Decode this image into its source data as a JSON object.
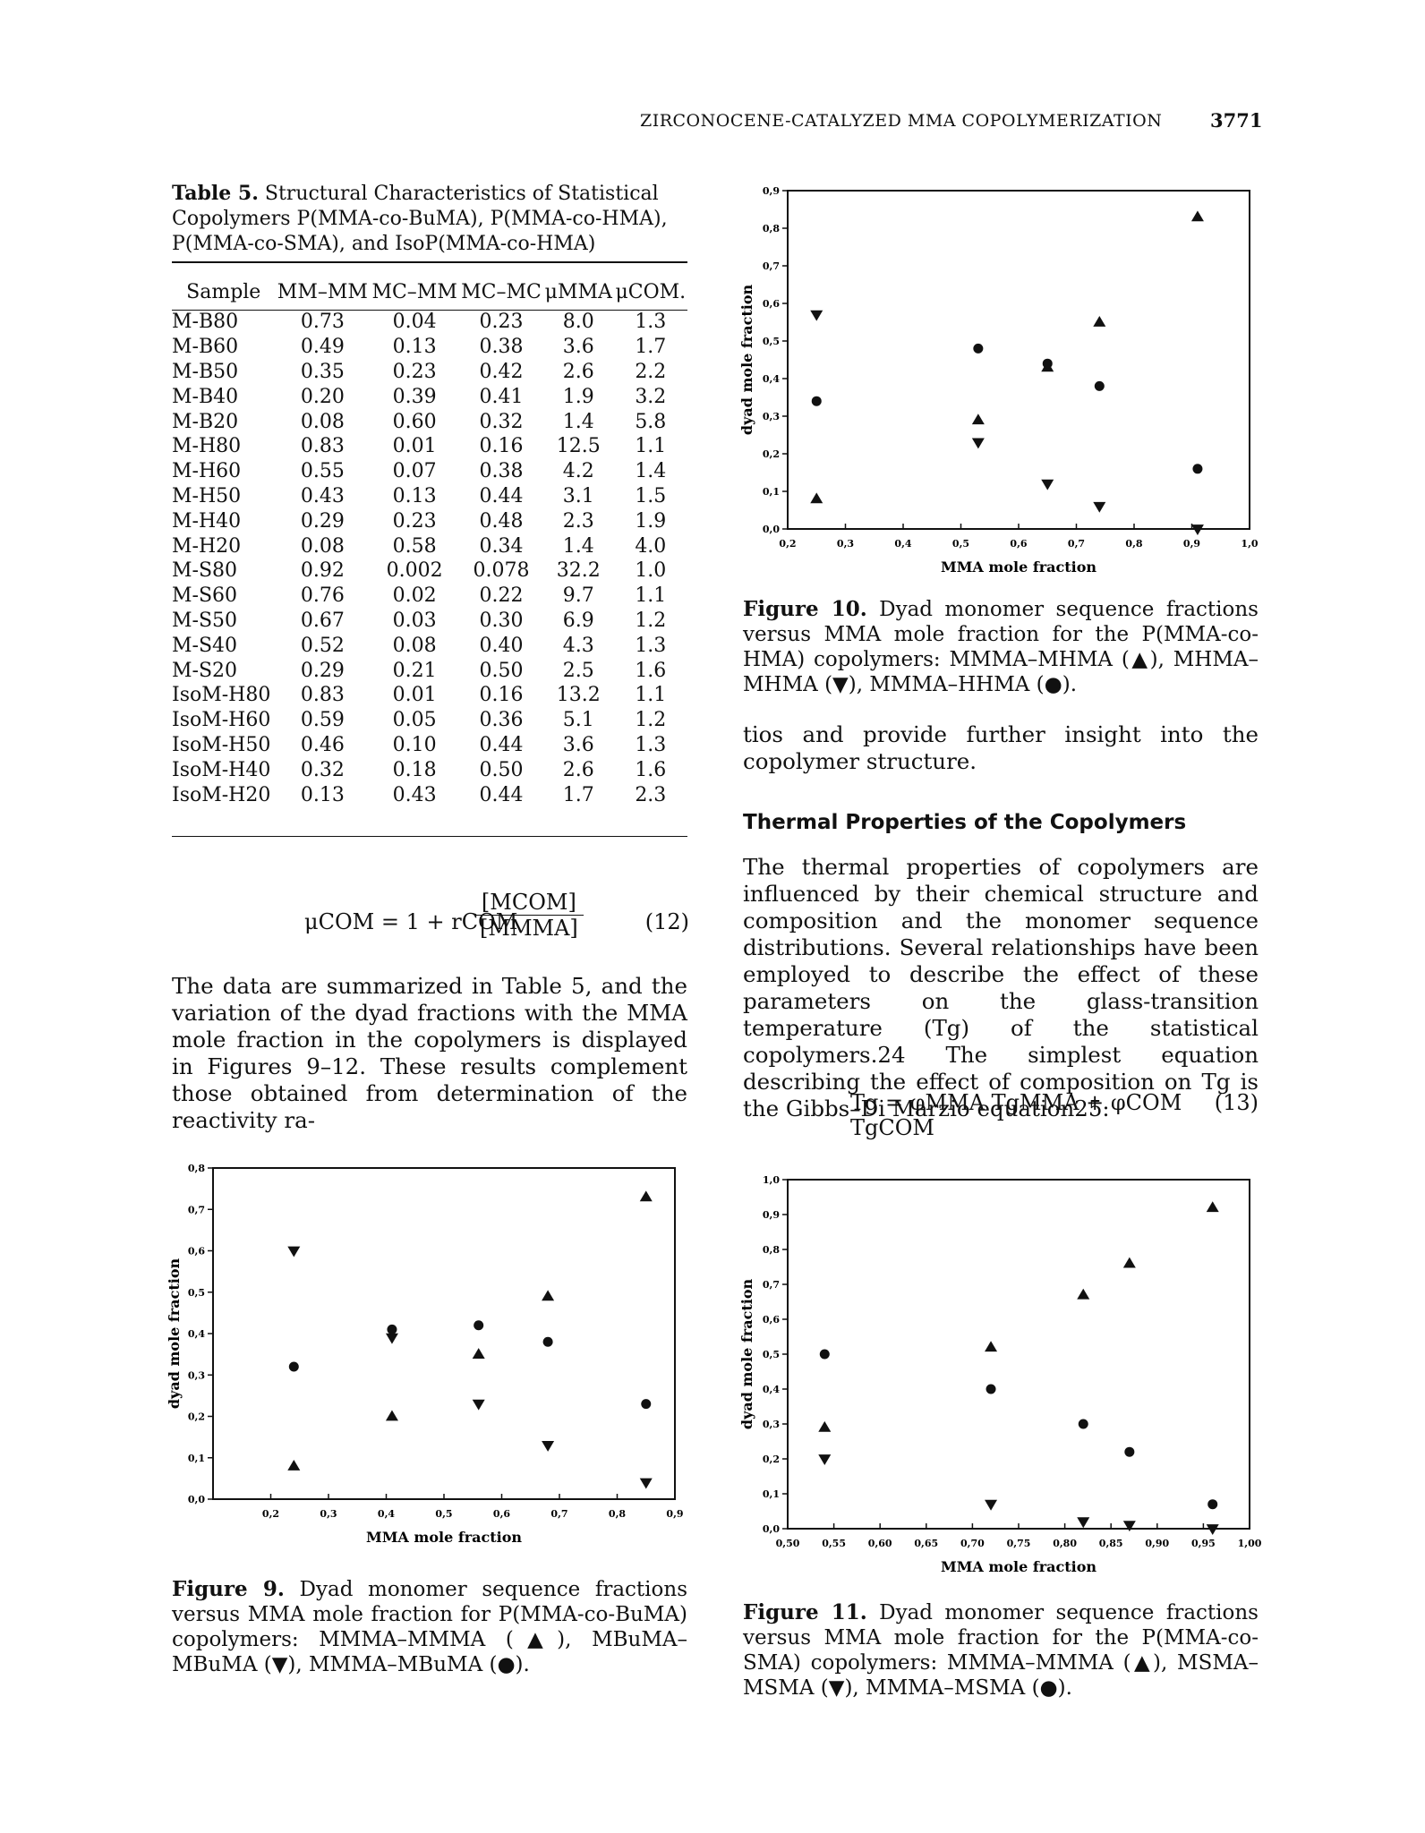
{
  "header": {
    "title": "ZIRCONOCENE-CATALYZED MMA COPOLYMERIZATION",
    "page": "3771"
  },
  "table5": {
    "label": "Table 5.",
    "caption": "Structural Characteristics of Statistical Copolymers P(MMA-co-BuMA), P(MMA-co-HMA), P(MMA-co-SMA), and IsoP(MMA-co-HMA)",
    "columns": [
      "Sample",
      "MM–MM",
      "MC–MM",
      "MC–MC",
      "μMMA",
      "μCOM."
    ],
    "rows": [
      [
        "M-B80",
        "0.73",
        "0.04",
        "0.23",
        "8.0",
        "1.3"
      ],
      [
        "M-B60",
        "0.49",
        "0.13",
        "0.38",
        "3.6",
        "1.7"
      ],
      [
        "M-B50",
        "0.35",
        "0.23",
        "0.42",
        "2.6",
        "2.2"
      ],
      [
        "M-B40",
        "0.20",
        "0.39",
        "0.41",
        "1.9",
        "3.2"
      ],
      [
        "M-B20",
        "0.08",
        "0.60",
        "0.32",
        "1.4",
        "5.8"
      ],
      [
        "M-H80",
        "0.83",
        "0.01",
        "0.16",
        "12.5",
        "1.1"
      ],
      [
        "M-H60",
        "0.55",
        "0.07",
        "0.38",
        "4.2",
        "1.4"
      ],
      [
        "M-H50",
        "0.43",
        "0.13",
        "0.44",
        "3.1",
        "1.5"
      ],
      [
        "M-H40",
        "0.29",
        "0.23",
        "0.48",
        "2.3",
        "1.9"
      ],
      [
        "M-H20",
        "0.08",
        "0.58",
        "0.34",
        "1.4",
        "4.0"
      ],
      [
        "M-S80",
        "0.92",
        "0.002",
        "0.078",
        "32.2",
        "1.0"
      ],
      [
        "M-S60",
        "0.76",
        "0.02",
        "0.22",
        "9.7",
        "1.1"
      ],
      [
        "M-S50",
        "0.67",
        "0.03",
        "0.30",
        "6.9",
        "1.2"
      ],
      [
        "M-S40",
        "0.52",
        "0.08",
        "0.40",
        "4.3",
        "1.3"
      ],
      [
        "M-S20",
        "0.29",
        "0.21",
        "0.50",
        "2.5",
        "1.6"
      ],
      [
        "IsoM-H80",
        "0.83",
        "0.01",
        "0.16",
        "13.2",
        "1.1"
      ],
      [
        "IsoM-H60",
        "0.59",
        "0.05",
        "0.36",
        "5.1",
        "1.2"
      ],
      [
        "IsoM-H50",
        "0.46",
        "0.10",
        "0.44",
        "3.6",
        "1.3"
      ],
      [
        "IsoM-H40",
        "0.32",
        "0.18",
        "0.50",
        "2.6",
        "1.6"
      ],
      [
        "IsoM-H20",
        "0.13",
        "0.43",
        "0.44",
        "1.7",
        "2.3"
      ]
    ]
  },
  "eq12": {
    "lhs": "μCOM = 1 + rCOM",
    "num": "[MCOM]",
    "den": "[MMMA]",
    "number": "(12)"
  },
  "text": {
    "left_para": "The data are summarized in Table 5, and the variation of the dyad fractions with the MMA mole fraction in the copolymers is displayed in Figures 9–12. These results complement those obtained from determination of the reactivity ra-",
    "right_cont": "tios and provide further insight into the copolymer structure.",
    "section": "Thermal Properties of the Copolymers",
    "right_para": "The thermal properties of copolymers are influenced by their chemical structure and composition and the monomer sequence distributions. Several relationships have been employed to describe the effect of these parameters on the glass-transition temperature (Tg) of the statistical copolymers.24 The simplest equation describing the effect of composition on Tg is the Gibbs–Di Marzio equation25:"
  },
  "eq13": {
    "expr": "Tg = φMMA TgMMA + φCOM TgCOM",
    "number": "(13)"
  },
  "captions": {
    "fig10_label": "Figure 10.",
    "fig10": "Dyad monomer sequence fractions versus MMA mole fraction for the P(MMA-co-HMA) copolymers: MMMA–MHMA (▲), MHMA–MHMA (▼), MMMA–HHMA (●).",
    "fig9_label": "Figure 9.",
    "fig9": "Dyad monomer sequence fractions versus MMA mole fraction for P(MMA-co-BuMA) copolymers: MMMA–MMMA (▲), MBuMA–MBuMA (▼), MMMA–MBuMA (●).",
    "fig11_label": "Figure 11.",
    "fig11": "Dyad monomer sequence fractions versus MMA mole fraction for the P(MMA-co-SMA) copolymers: MMMA–MMMA (▲), MSMA–MSMA (▼), MMMA–MSMA (●)."
  },
  "chart_data": [
    {
      "id": "fig10",
      "type": "scatter",
      "xlabel": "MMA mole fraction",
      "ylabel": "dyad mole fraction",
      "xlim": [
        0.2,
        1.0
      ],
      "ylim": [
        0.0,
        0.9
      ],
      "xticks": [
        "0,2",
        "0,3",
        "0,4",
        "0,5",
        "0,6",
        "0,7",
        "0,8",
        "0,9",
        "1,0"
      ],
      "yticks": [
        "0,0",
        "0,1",
        "0,2",
        "0,3",
        "0,4",
        "0,5",
        "0,6",
        "0,7",
        "0,8",
        "0,9"
      ],
      "series": [
        {
          "marker": "triangle-up",
          "points": [
            [
              0.25,
              0.08
            ],
            [
              0.53,
              0.29
            ],
            [
              0.65,
              0.43
            ],
            [
              0.74,
              0.55
            ],
            [
              0.91,
              0.83
            ]
          ]
        },
        {
          "marker": "triangle-down",
          "points": [
            [
              0.25,
              0.57
            ],
            [
              0.53,
              0.23
            ],
            [
              0.65,
              0.12
            ],
            [
              0.74,
              0.06
            ],
            [
              0.91,
              0.0
            ]
          ]
        },
        {
          "marker": "circle",
          "points": [
            [
              0.25,
              0.34
            ],
            [
              0.53,
              0.48
            ],
            [
              0.65,
              0.44
            ],
            [
              0.74,
              0.38
            ],
            [
              0.91,
              0.16
            ]
          ]
        }
      ]
    },
    {
      "id": "fig9",
      "type": "scatter",
      "xlabel": "MMA mole fraction",
      "ylabel": "dyad mole fraction",
      "xlim": [
        0.1,
        0.9
      ],
      "ylim": [
        0.0,
        0.8
      ],
      "xticks": [
        "0,2",
        "0,3",
        "0,4",
        "0,5",
        "0,6",
        "0,7",
        "0,8",
        "0,9"
      ],
      "yticks": [
        "0,0",
        "0,1",
        "0,2",
        "0,3",
        "0,4",
        "0,5",
        "0,6",
        "0,7",
        "0,8"
      ],
      "series": [
        {
          "marker": "triangle-up",
          "points": [
            [
              0.24,
              0.08
            ],
            [
              0.41,
              0.2
            ],
            [
              0.56,
              0.35
            ],
            [
              0.68,
              0.49
            ],
            [
              0.85,
              0.73
            ]
          ]
        },
        {
          "marker": "triangle-down",
          "points": [
            [
              0.24,
              0.6
            ],
            [
              0.41,
              0.39
            ],
            [
              0.56,
              0.23
            ],
            [
              0.68,
              0.13
            ],
            [
              0.85,
              0.04
            ]
          ]
        },
        {
          "marker": "circle",
          "points": [
            [
              0.24,
              0.32
            ],
            [
              0.41,
              0.41
            ],
            [
              0.56,
              0.42
            ],
            [
              0.68,
              0.38
            ],
            [
              0.85,
              0.23
            ]
          ]
        }
      ]
    },
    {
      "id": "fig11",
      "type": "scatter",
      "xlabel": "MMA mole fraction",
      "ylabel": "dyad mole fraction",
      "xlim": [
        0.5,
        1.0
      ],
      "ylim": [
        0.0,
        1.0
      ],
      "xticks": [
        "0,50",
        "0,55",
        "0,60",
        "0,65",
        "0,70",
        "0,75",
        "0,80",
        "0,85",
        "0,90",
        "0,95",
        "1,00"
      ],
      "yticks": [
        "0,0",
        "0,1",
        "0,2",
        "0,3",
        "0,4",
        "0,5",
        "0,6",
        "0,7",
        "0,8",
        "0,9",
        "1,0"
      ],
      "series": [
        {
          "marker": "triangle-up",
          "points": [
            [
              0.54,
              0.29
            ],
            [
              0.72,
              0.52
            ],
            [
              0.82,
              0.67
            ],
            [
              0.87,
              0.76
            ],
            [
              0.96,
              0.92
            ]
          ]
        },
        {
          "marker": "triangle-down",
          "points": [
            [
              0.54,
              0.2
            ],
            [
              0.72,
              0.07
            ],
            [
              0.82,
              0.02
            ],
            [
              0.87,
              0.01
            ],
            [
              0.96,
              0.0
            ]
          ]
        },
        {
          "marker": "circle",
          "points": [
            [
              0.54,
              0.5
            ],
            [
              0.72,
              0.4
            ],
            [
              0.82,
              0.3
            ],
            [
              0.87,
              0.22
            ],
            [
              0.96,
              0.07
            ]
          ]
        }
      ]
    }
  ]
}
